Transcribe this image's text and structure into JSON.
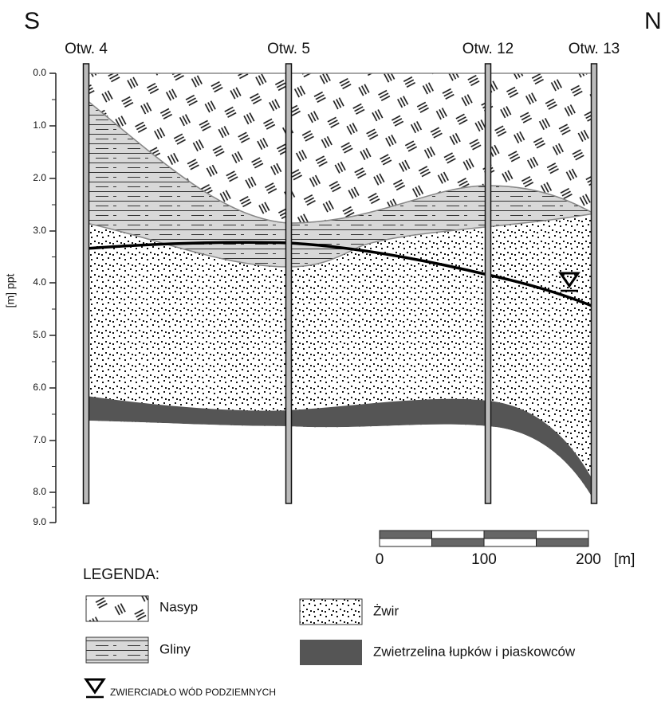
{
  "direction": {
    "left": "S",
    "right": "N"
  },
  "wells": [
    "Otw. 4",
    "Otw. 5",
    "Otw. 12",
    "Otw. 13"
  ],
  "axis": {
    "label": "[m] ppt",
    "ticks": [
      "0.0",
      "1.0",
      "2.0",
      "3.0",
      "4.0",
      "5.0",
      "6.0",
      "7.0",
      "8.0",
      "9.0"
    ]
  },
  "scale": {
    "labels": [
      "0",
      "100",
      "200"
    ],
    "unit": "[m]"
  },
  "legend": {
    "title": "LEGENDA:",
    "items": [
      "Nasyp",
      "Gliny",
      "Żwir",
      "Zwietrzelina  łupków i piaskowców"
    ]
  },
  "water_table": "ZWIERCIADŁO WÓD PODZIEMNYCH"
}
